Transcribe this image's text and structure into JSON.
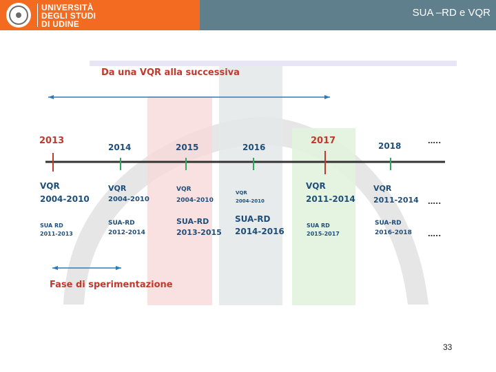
{
  "header": {
    "logo_lines": [
      "UNIVERSITÀ",
      "DEGLI STUDI",
      "DI UDINE"
    ],
    "slide_title": "SUA –RD e VQR"
  },
  "diagram": {
    "title": "Da una VQR alla successiva",
    "years": [
      "2013",
      "2014",
      "2015",
      "2016",
      "2017",
      "2018",
      "….."
    ],
    "vqr": [
      "VQR",
      "2004-2010",
      "VQR",
      "2004-2010",
      "VQR",
      "2004-2010",
      "VQR",
      "2004-2010",
      "VQR",
      "2011-2014",
      "VQR",
      "2011-2014",
      "….."
    ],
    "sua": [
      "SUA RD",
      "2011-2013",
      "SUA-RD",
      "2012-2014",
      "SUA-RD",
      "2013-2015",
      "SUA-RD",
      "2014-2016",
      "SUA RD",
      "2015-2017",
      "SUA-RD",
      "2016-2018",
      "….."
    ],
    "phase_label": "Fase di sperimentazione",
    "colors": {
      "red": "#c0392b",
      "green": "#2eaa5c",
      "blue": "#2b7bb9",
      "timeline": "#333333"
    }
  },
  "page_number": "33"
}
